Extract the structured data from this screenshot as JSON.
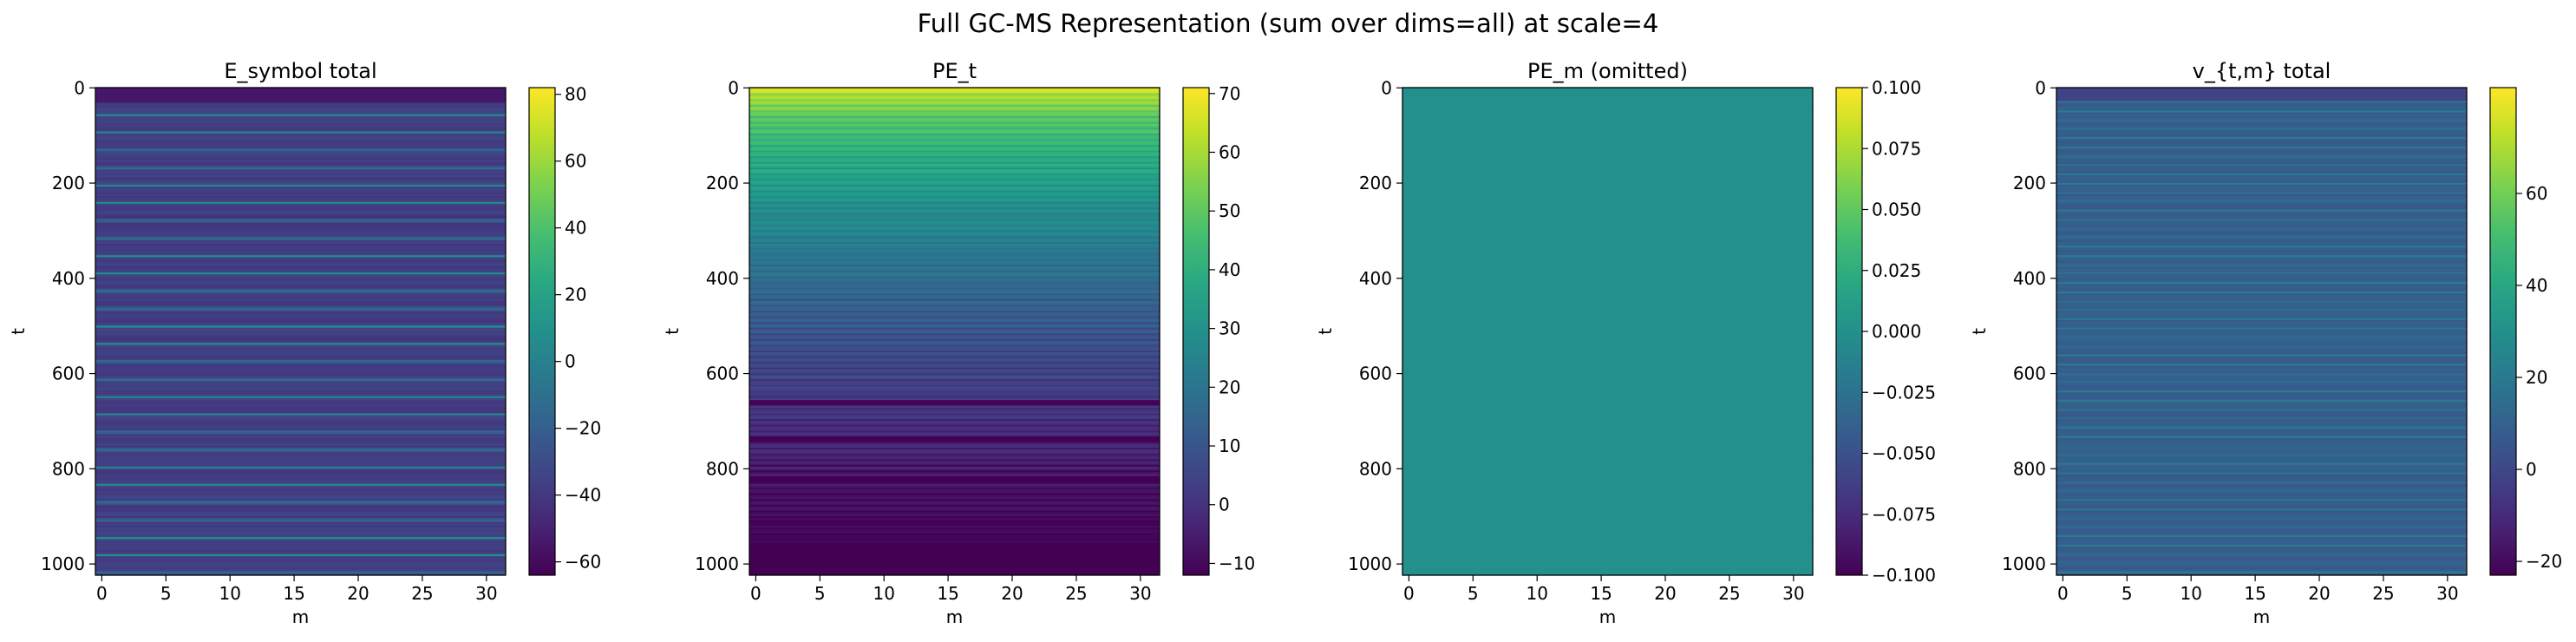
{
  "figure": {
    "title": "Full GC-MS Representation (sum over dims=all) at scale=4"
  },
  "chart_data": [
    {
      "type": "heatmap",
      "title": "E_symbol total",
      "xlabel": "m",
      "ylabel": "t",
      "x_ticks": [
        "0",
        "5",
        "10",
        "15",
        "20",
        "25",
        "30"
      ],
      "y_ticks": [
        "0",
        "200",
        "400",
        "600",
        "800",
        "1000"
      ],
      "xlim": [
        -0.5,
        31.5
      ],
      "ylim": [
        1023.5,
        -0.5
      ],
      "colormap": "viridis",
      "color_range": [
        -64,
        82
      ],
      "colorbar_ticks": [
        "80",
        "60",
        "40",
        "20",
        "0",
        "−20",
        "−40",
        "−60"
      ],
      "colorbar_tick_values": [
        80,
        60,
        40,
        20,
        0,
        -20,
        -40,
        -60
      ],
      "pattern": "horizontal stripes, mostly near -30 with brighter bands up to about 40, darkest band at top rows"
    },
    {
      "type": "heatmap",
      "title": "PE_t",
      "xlabel": "m",
      "ylabel": "t",
      "x_ticks": [
        "0",
        "5",
        "10",
        "15",
        "20",
        "25",
        "30"
      ],
      "y_ticks": [
        "0",
        "200",
        "400",
        "600",
        "800",
        "1000"
      ],
      "xlim": [
        -0.5,
        31.5
      ],
      "ylim": [
        1023.5,
        -0.5
      ],
      "colormap": "viridis",
      "color_range": [
        -12,
        71
      ],
      "colorbar_ticks": [
        "70",
        "60",
        "50",
        "40",
        "30",
        "20",
        "10",
        "0",
        "−10"
      ],
      "colorbar_tick_values": [
        70,
        60,
        50,
        40,
        30,
        20,
        10,
        0,
        -10
      ],
      "pattern": "constant across m; decreases from about 70 at t=0 to about -5 at t=1023 with stripes"
    },
    {
      "type": "heatmap",
      "title": "PE_m (omitted)",
      "xlabel": "m",
      "ylabel": "t",
      "x_ticks": [
        "0",
        "5",
        "10",
        "15",
        "20",
        "25",
        "30"
      ],
      "y_ticks": [
        "0",
        "200",
        "400",
        "600",
        "800",
        "1000"
      ],
      "xlim": [
        -0.5,
        31.5
      ],
      "ylim": [
        1023.5,
        -0.5
      ],
      "colormap": "viridis",
      "color_range": [
        -0.1,
        0.1
      ],
      "colorbar_ticks": [
        "0.100",
        "0.075",
        "0.050",
        "0.025",
        "0.000",
        "−0.025",
        "−0.050",
        "−0.075",
        "−0.100"
      ],
      "colorbar_tick_values": [
        0.1,
        0.075,
        0.05,
        0.025,
        0.0,
        -0.025,
        -0.05,
        -0.075,
        -0.1
      ],
      "pattern": "uniform value 0"
    },
    {
      "type": "heatmap",
      "title": "v_{t,m} total",
      "xlabel": "m",
      "ylabel": "t",
      "x_ticks": [
        "0",
        "5",
        "10",
        "15",
        "20",
        "25",
        "30"
      ],
      "y_ticks": [
        "0",
        "200",
        "400",
        "600",
        "800",
        "1000"
      ],
      "xlim": [
        -0.5,
        31.5
      ],
      "ylim": [
        1023.5,
        -0.5
      ],
      "colormap": "viridis",
      "color_range": [
        -23,
        83
      ],
      "colorbar_ticks": [
        "60",
        "40",
        "20",
        "0",
        "−20"
      ],
      "colorbar_tick_values": [
        60,
        40,
        20,
        0,
        -20
      ],
      "pattern": "dense horizontal stripes around 5 to 25 with darker top band"
    }
  ]
}
